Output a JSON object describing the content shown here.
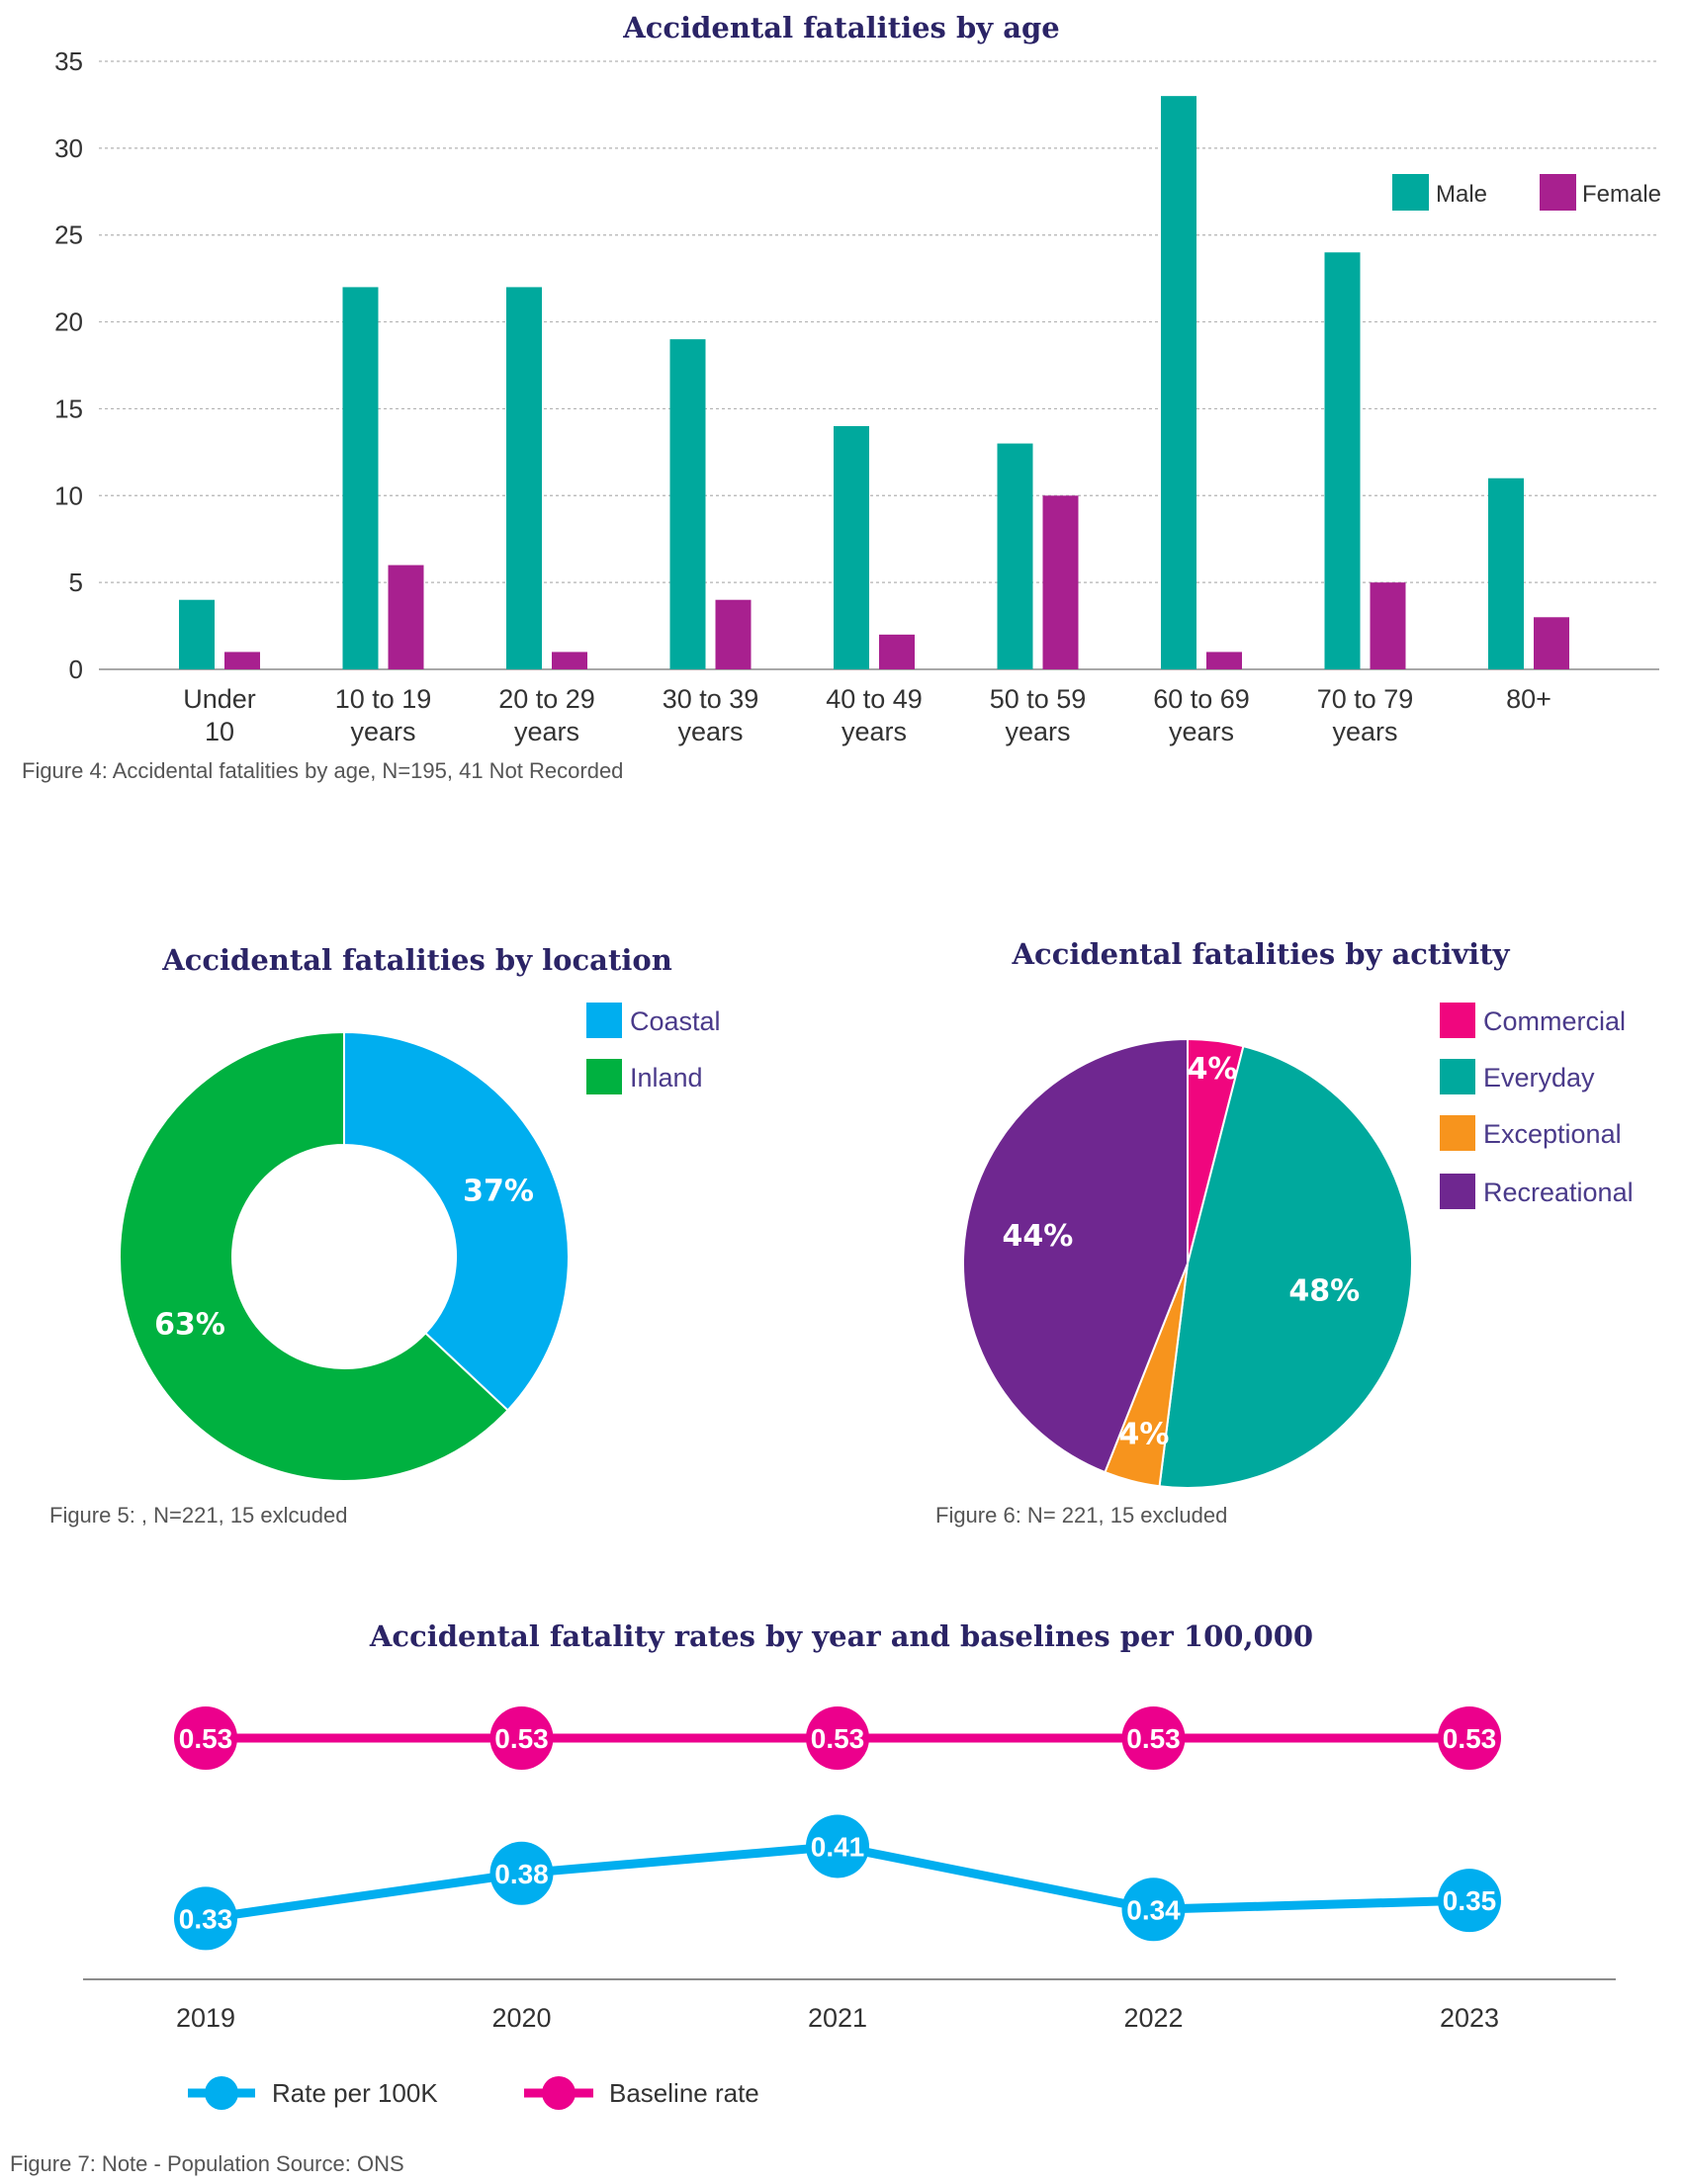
{
  "colors": {
    "male": "#00a99d",
    "female": "#a8208f",
    "coastal": "#00aeef",
    "inland": "#00b140",
    "commercial": "#f0067e",
    "everyday": "#00a99d",
    "exceptional": "#f7941d",
    "recreational": "#6f2790",
    "rate": "#00aeef",
    "baseline": "#ec008c",
    "grid": "#b3b3b3",
    "title": "#2b2466"
  },
  "chart_data": [
    {
      "type": "bar",
      "title": "Accidental fatalities by age",
      "caption": "Figure 4: Accidental fatalities by age, N=195, 41 Not Recorded",
      "categories": [
        [
          "Under",
          "10"
        ],
        [
          "10 to 19",
          "years"
        ],
        [
          "20 to 29",
          "years"
        ],
        [
          "30 to 39",
          "years"
        ],
        [
          "40 to 49",
          "years"
        ],
        [
          "50 to 59",
          "years"
        ],
        [
          "60 to 69",
          "years"
        ],
        [
          "70 to 79",
          "years"
        ],
        [
          "80+"
        ]
      ],
      "series": [
        {
          "name": "Male",
          "values": [
            4,
            22,
            22,
            19,
            14,
            13,
            33,
            24,
            11
          ]
        },
        {
          "name": "Female",
          "values": [
            1,
            6,
            1,
            4,
            2,
            10,
            1,
            5,
            3
          ]
        }
      ],
      "ylim": [
        0,
        35
      ],
      "yticks": [
        0,
        5,
        10,
        15,
        20,
        25,
        30,
        35
      ],
      "grid": true,
      "legend_position": "top-right"
    },
    {
      "type": "pie",
      "variant": "donut",
      "title": "Accidental fatalities by location",
      "caption": "Figure 5: , N=221, 15 exlcuded",
      "labels": [
        "Coastal",
        "Inland"
      ],
      "values": [
        37,
        63
      ],
      "value_labels": [
        "37%",
        "63%"
      ],
      "legend_position": "top-right"
    },
    {
      "type": "pie",
      "title": "Accidental fatalities by activity",
      "caption": "Figure 6: N= 221, 15 excluded",
      "labels": [
        "Commercial",
        "Everyday",
        "Exceptional",
        "Recreational"
      ],
      "values": [
        4,
        48,
        4,
        44
      ],
      "value_labels": [
        "4%",
        "48%",
        "4%",
        "44%"
      ],
      "legend_position": "top-right"
    },
    {
      "type": "line",
      "title": "Accidental fatality rates by year and baselines per 100,000",
      "caption": "Figure 7: Note - Population Source: ONS",
      "x": [
        "2019",
        "2020",
        "2021",
        "2022",
        "2023"
      ],
      "series": [
        {
          "name": "Baseline rate",
          "values": [
            0.53,
            0.53,
            0.53,
            0.53,
            0.53
          ],
          "labels": [
            "0.53",
            "0.53",
            "0.53",
            "0.53",
            "0.53"
          ]
        },
        {
          "name": "Rate per 100K",
          "values": [
            0.33,
            0.38,
            0.41,
            0.34,
            0.35
          ],
          "labels": [
            "0.33",
            "0.38",
            "0.41",
            "0.34",
            "0.35"
          ]
        }
      ],
      "legend_position": "bottom-left"
    }
  ]
}
